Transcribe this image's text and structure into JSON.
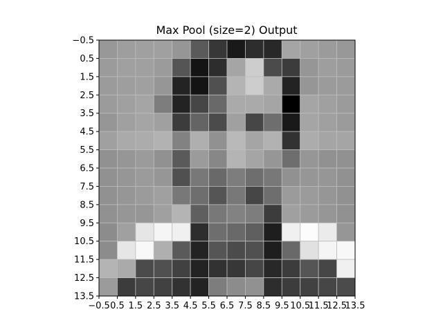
{
  "chart_data": {
    "type": "heatmap",
    "title": "Max Pool (size=2) Output",
    "xlabel": "",
    "ylabel": "",
    "colormap": "gray",
    "grid": true,
    "xlim": [
      -0.5,
      13.5
    ],
    "ylim": [
      13.5,
      -0.5
    ],
    "x_tick_labels": [
      "−0.5",
      "0.5",
      "1.5",
      "2.5",
      "3.5",
      "4.5",
      "5.5",
      "6.5",
      "7.5",
      "8.5",
      "9.5",
      "10.5",
      "11.5",
      "12.5",
      "13.5"
    ],
    "y_tick_labels": [
      "−0.5",
      "0.5",
      "1.5",
      "2.5",
      "3.5",
      "4.5",
      "5.5",
      "6.5",
      "7.5",
      "8.5",
      "9.5",
      "10.5",
      "11.5",
      "12.5",
      "13.5"
    ],
    "values": [
      [
        152,
        158,
        160,
        160,
        150,
        90,
        55,
        25,
        45,
        40,
        165,
        160,
        155,
        152
      ],
      [
        155,
        160,
        160,
        155,
        85,
        20,
        45,
        165,
        205,
        75,
        60,
        150,
        158,
        155
      ],
      [
        155,
        158,
        160,
        150,
        35,
        20,
        80,
        180,
        205,
        170,
        35,
        150,
        155,
        155
      ],
      [
        155,
        160,
        165,
        125,
        35,
        70,
        105,
        170,
        170,
        165,
        0,
        165,
        160,
        155
      ],
      [
        150,
        160,
        165,
        160,
        60,
        100,
        75,
        160,
        70,
        110,
        25,
        165,
        160,
        155
      ],
      [
        160,
        170,
        172,
        178,
        130,
        175,
        145,
        185,
        165,
        178,
        50,
        172,
        165,
        165
      ],
      [
        145,
        150,
        155,
        145,
        90,
        155,
        135,
        180,
        165,
        150,
        110,
        150,
        145,
        145
      ],
      [
        145,
        150,
        155,
        150,
        80,
        120,
        105,
        125,
        110,
        120,
        145,
        150,
        150,
        145
      ],
      [
        145,
        150,
        155,
        160,
        120,
        110,
        85,
        120,
        70,
        110,
        155,
        155,
        150,
        145
      ],
      [
        145,
        150,
        150,
        160,
        180,
        95,
        120,
        130,
        125,
        60,
        160,
        155,
        150,
        145
      ],
      [
        140,
        160,
        230,
        245,
        240,
        45,
        110,
        105,
        95,
        30,
        240,
        252,
        235,
        150
      ],
      [
        140,
        230,
        248,
        175,
        90,
        35,
        85,
        75,
        80,
        30,
        105,
        225,
        245,
        248
      ],
      [
        180,
        170,
        75,
        80,
        65,
        35,
        50,
        55,
        70,
        40,
        60,
        85,
        70,
        240
      ],
      [
        155,
        60,
        70,
        65,
        50,
        35,
        125,
        140,
        145,
        45,
        60,
        65,
        70,
        75
      ]
    ]
  }
}
